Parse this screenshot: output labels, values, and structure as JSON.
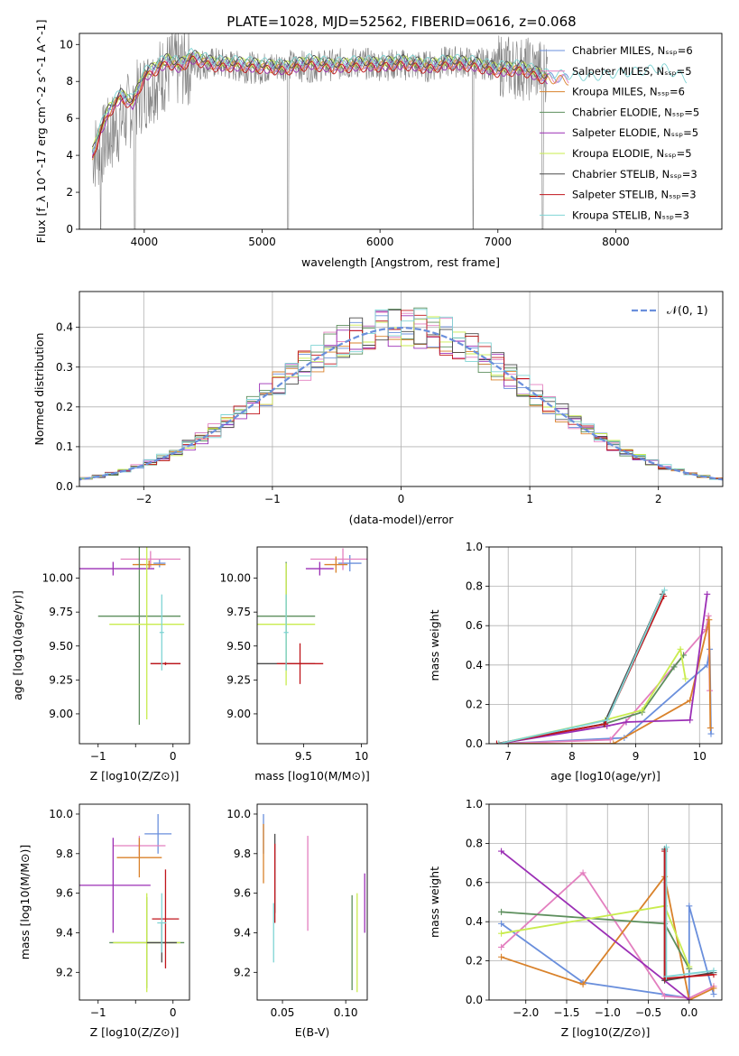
{
  "figure_title": "PLATE=1028, MJD=52562, FIBERID=0616, z=0.068",
  "colors": {
    "grid": "#b0b0b0",
    "data_spectrum": "#7f7f7f",
    "series": [
      "#6a8fdc",
      "#e37fbf",
      "#d9822b",
      "#5d8f5d",
      "#9b2fb5",
      "#c9ec4e",
      "#4a4a4a",
      "#c0151b",
      "#7fd4d4"
    ]
  },
  "chart_data": [
    {
      "id": "spectrum",
      "type": "line",
      "xlabel": "wavelength [Angstrom, rest frame]",
      "ylabel": "Flux [f_λ 10^-17 erg cm^-2 s^-1 A^-1]",
      "xlim": [
        3450,
        8900
      ],
      "ylim": [
        0,
        10.6
      ],
      "xticks": [
        4000,
        5000,
        6000,
        7000,
        8000
      ],
      "yticks": [
        0,
        2,
        4,
        6,
        8,
        10
      ],
      "legend_position": "upper-right",
      "data_series": {
        "name": "",
        "x": [
          3600,
          3800,
          4000,
          4200,
          4400,
          4600,
          4800,
          5000,
          5200,
          5400,
          5600,
          5800,
          6000,
          6200,
          6400,
          6600,
          6800,
          7000,
          7200,
          7400
        ],
        "y": [
          4.2,
          5.8,
          7.5,
          8.6,
          8.9,
          9.0,
          8.8,
          8.7,
          8.9,
          8.8,
          8.9,
          9.0,
          8.9,
          8.9,
          8.8,
          9.1,
          9.0,
          8.9,
          8.7,
          8.6
        ],
        "absorption_dips": [
          [
            3630,
            0
          ],
          [
            3920,
            0
          ],
          [
            5220,
            0
          ],
          [
            6790,
            0
          ],
          [
            7380,
            0
          ]
        ]
      },
      "model_x": [
        3560,
        3620,
        3700,
        3800,
        3900,
        4000,
        4100,
        4200,
        4300,
        4400,
        4500,
        4600,
        4800,
        5000,
        5200,
        5400,
        5600,
        5800,
        6000,
        6200,
        6400,
        6600,
        6800,
        7000,
        7200,
        7400,
        7600,
        7800,
        8000,
        8200,
        8400,
        8600
      ],
      "model_base": [
        4.0,
        5.2,
        6.4,
        7.2,
        6.8,
        8.3,
        8.7,
        9.1,
        8.8,
        9.3,
        9.1,
        8.9,
        8.9,
        8.8,
        8.7,
        9.0,
        8.8,
        8.9,
        8.9,
        9.0,
        8.8,
        9.0,
        8.9,
        8.6,
        8.7,
        8.2,
        8.1,
        8.0,
        8.2,
        8.3,
        8.5,
        7.9
      ],
      "series": [
        {
          "name": "Chabrier MILES, N_SSP=6",
          "offset": 0.05
        },
        {
          "name": "Salpeter MILES, N_SSP=5",
          "offset": 0.0
        },
        {
          "name": "Kroupa MILES, N_SSP=6",
          "offset": -0.05
        },
        {
          "name": "Chabrier ELODIE, N_SSP=5",
          "offset": 0.1
        },
        {
          "name": "Salpeter ELODIE, N_SSP=5",
          "offset": -0.1
        },
        {
          "name": "Kroupa ELODIE, N_SSP=5",
          "offset": 0.15
        },
        {
          "name": "Chabrier STELIB, N_SSP=3",
          "offset": 0.2
        },
        {
          "name": "Salpeter STELIB, N_SSP=3",
          "offset": -0.15
        },
        {
          "name": "Kroupa STELIB, N_SSP=3",
          "offset": 0.25
        }
      ]
    },
    {
      "id": "residuals",
      "type": "histogram",
      "xlabel": "(data-model)/error",
      "ylabel": "Normed distribution",
      "xlim": [
        -2.5,
        2.5
      ],
      "ylim": [
        0,
        0.49
      ],
      "xticks": [
        -2,
        -1,
        0,
        1,
        2
      ],
      "yticks": [
        0.0,
        0.1,
        0.2,
        0.3,
        0.4
      ],
      "grid": true,
      "legend_position": "upper-right",
      "gaussian_label": "𝒩(0, 1)",
      "bin_width": 0.1
    },
    {
      "id": "age_vs_Z",
      "type": "errorbar",
      "xlabel": "Z [log10(Z/Z⊙)]",
      "ylabel": "age [log10(age/yr)]",
      "xlim": [
        -1.25,
        0.22
      ],
      "ylim": [
        8.78,
        10.23
      ],
      "xticks": [
        -1,
        -0.5,
        0
      ],
      "xticklabels": [
        "−1",
        "",
        "0"
      ],
      "yticks": [
        9.0,
        9.25,
        9.5,
        9.75,
        10.0
      ],
      "points": [
        {
          "series": 0,
          "x": -0.18,
          "xerr": 0.08,
          "y": 10.11,
          "yerr": 0.03
        },
        {
          "series": 1,
          "x": -0.3,
          "xerr": 0.4,
          "y": 10.14,
          "yerr": 0.06
        },
        {
          "series": 2,
          "x": -0.32,
          "xerr": 0.22,
          "y": 10.1,
          "yerr": 0.03
        },
        {
          "series": 3,
          "x": -0.45,
          "xerr": 0.55,
          "y": 9.72,
          "yerr": 0.8
        },
        {
          "series": 4,
          "x": -0.8,
          "xerr": 0.55,
          "y": 10.07,
          "yerr": 0.05
        },
        {
          "series": 5,
          "x": -0.35,
          "xerr": 0.5,
          "y": 9.66,
          "yerr": 0.7
        },
        {
          "series": 6,
          "x": -0.1,
          "xerr": 0.2,
          "y": 9.37,
          "yerr": 0.01
        },
        {
          "series": 7,
          "x": -0.1,
          "xerr": 0.2,
          "y": 9.37,
          "yerr": 0.01
        },
        {
          "series": 8,
          "x": -0.15,
          "xerr": 0.03,
          "y": 9.6,
          "yerr": 0.28
        }
      ]
    },
    {
      "id": "age_vs_mass",
      "type": "errorbar",
      "xlabel": "mass [log10(M/M⊙)]",
      "ylabel": "",
      "xlim": [
        9.1,
        10.05
      ],
      "ylim": [
        8.78,
        10.23
      ],
      "xticks": [
        9.5,
        10.0
      ],
      "yticks": [
        9.0,
        9.25,
        9.5,
        9.75,
        10.0
      ],
      "points": [
        {
          "series": 0,
          "x": 9.9,
          "xerr": 0.1,
          "y": 10.11,
          "yerr": 0.06
        },
        {
          "series": 1,
          "x": 9.84,
          "xerr": 0.28,
          "y": 10.14,
          "yerr": 0.08
        },
        {
          "series": 2,
          "x": 9.78,
          "xerr": 0.1,
          "y": 10.1,
          "yerr": 0.06
        },
        {
          "series": 3,
          "x": 9.35,
          "xerr": 0.25,
          "y": 9.72,
          "yerr": 0.4
        },
        {
          "series": 4,
          "x": 9.64,
          "xerr": 0.12,
          "y": 10.07,
          "yerr": 0.05
        },
        {
          "series": 5,
          "x": 9.35,
          "xerr": 0.25,
          "y": 9.66,
          "yerr": 0.45
        },
        {
          "series": 6,
          "x": 9.35,
          "xerr": 0.25,
          "y": 9.37,
          "yerr": 0.01
        },
        {
          "series": 7,
          "x": 9.47,
          "xerr": 0.2,
          "y": 9.37,
          "yerr": 0.15
        },
        {
          "series": 8,
          "x": 9.35,
          "xerr": 0.02,
          "y": 9.6,
          "yerr": 0.28
        }
      ]
    },
    {
      "id": "weight_vs_age",
      "type": "line",
      "xlabel": "age [log10(age/yr)]",
      "ylabel": "mass weight",
      "xlim": [
        6.7,
        10.35
      ],
      "ylim": [
        0,
        1
      ],
      "xticks": [
        7,
        8,
        9,
        10
      ],
      "yticks": [
        0.0,
        0.2,
        0.4,
        0.6,
        0.8,
        1.0
      ],
      "grid": true,
      "series": [
        {
          "x": [
            6.85,
            8.82,
            10.12,
            10.16,
            10.18
          ],
          "y": [
            0.0,
            0.03,
            0.4,
            0.48,
            0.05
          ]
        },
        {
          "x": [
            6.85,
            8.6,
            10.1,
            10.14,
            10.16
          ],
          "y": [
            0.0,
            0.02,
            0.58,
            0.65,
            0.27
          ]
        },
        {
          "x": [
            6.85,
            8.65,
            9.85,
            10.15,
            10.17
          ],
          "y": [
            0.0,
            0.0,
            0.22,
            0.63,
            0.08
          ]
        },
        {
          "x": [
            6.85,
            8.5,
            9.1,
            9.6,
            9.75
          ],
          "y": [
            0.0,
            0.1,
            0.16,
            0.39,
            0.45
          ]
        },
        {
          "x": [
            6.85,
            8.55,
            8.85,
            9.85,
            10.12
          ],
          "y": [
            0.0,
            0.09,
            0.11,
            0.12,
            0.76
          ]
        },
        {
          "x": [
            6.85,
            8.52,
            9.1,
            9.7,
            9.78
          ],
          "y": [
            0.0,
            0.12,
            0.17,
            0.48,
            0.33
          ]
        },
        {
          "x": [
            6.82,
            8.5,
            9.42
          ],
          "y": [
            0.0,
            0.1,
            0.76
          ]
        },
        {
          "x": [
            6.82,
            8.52,
            9.44
          ],
          "y": [
            0.0,
            0.1,
            0.75
          ]
        },
        {
          "x": [
            6.85,
            8.55,
            9.45
          ],
          "y": [
            0.0,
            0.12,
            0.78
          ]
        }
      ]
    },
    {
      "id": "mass_vs_Z",
      "type": "errorbar",
      "xlabel": "Z [log10(Z/Z⊙)]",
      "ylabel": "mass [log10(M/M⊙)]",
      "xlim": [
        -1.25,
        0.22
      ],
      "ylim": [
        9.06,
        10.05
      ],
      "xticks": [
        -1,
        -0.5,
        0
      ],
      "xticklabels": [
        "−1",
        "",
        "0"
      ],
      "yticks": [
        9.2,
        9.4,
        9.6,
        9.8,
        10.0
      ],
      "points": [
        {
          "series": 0,
          "x": -0.2,
          "xerr": 0.18,
          "y": 9.9,
          "yerr": 0.1
        },
        {
          "series": 1,
          "x": -0.45,
          "xerr": 0.35,
          "y": 9.84,
          "yerr": 0.05
        },
        {
          "series": 2,
          "x": -0.45,
          "xerr": 0.3,
          "y": 9.78,
          "yerr": 0.1
        },
        {
          "series": 3,
          "x": -0.35,
          "xerr": 0.5,
          "y": 9.35,
          "yerr": 0.23
        },
        {
          "series": 4,
          "x": -0.8,
          "xerr": 0.5,
          "y": 9.64,
          "yerr": 0.24
        },
        {
          "series": 5,
          "x": -0.35,
          "xerr": 0.45,
          "y": 9.35,
          "yerr": 0.25
        },
        {
          "series": 6,
          "x": -0.15,
          "xerr": 0.2,
          "y": 9.35,
          "yerr": 0.1
        },
        {
          "series": 7,
          "x": -0.1,
          "xerr": 0.18,
          "y": 9.47,
          "yerr": 0.25
        },
        {
          "series": 8,
          "x": -0.15,
          "xerr": 0.06,
          "y": 9.45,
          "yerr": 0.15
        }
      ]
    },
    {
      "id": "mass_vs_ebv",
      "type": "errorbar",
      "xlabel": "E(B-V)",
      "ylabel": "",
      "xlim": [
        0.03,
        0.117
      ],
      "ylim": [
        9.06,
        10.05
      ],
      "xticks": [
        0.05,
        0.1
      ],
      "yticks": [
        9.2,
        9.4,
        9.6,
        9.8,
        10.0
      ],
      "points": [
        {
          "series": 0,
          "x": 0.035,
          "xerr": 0,
          "y": 9.9,
          "yerr": 0.1
        },
        {
          "series": 1,
          "x": 0.07,
          "xerr": 0,
          "y": 9.65,
          "yerr": 0.24
        },
        {
          "series": 2,
          "x": 0.035,
          "xerr": 0,
          "y": 9.8,
          "yerr": 0.15
        },
        {
          "series": 3,
          "x": 0.105,
          "xerr": 0,
          "y": 9.35,
          "yerr": 0.24
        },
        {
          "series": 4,
          "x": 0.115,
          "xerr": 0,
          "y": 9.55,
          "yerr": 0.15
        },
        {
          "series": 5,
          "x": 0.109,
          "xerr": 0,
          "y": 9.35,
          "yerr": 0.25
        },
        {
          "series": 6,
          "x": 0.044,
          "xerr": 0,
          "y": 9.7,
          "yerr": 0.2
        },
        {
          "series": 7,
          "x": 0.044,
          "xerr": 0,
          "y": 9.65,
          "yerr": 0.2
        },
        {
          "series": 8,
          "x": 0.043,
          "xerr": 0,
          "y": 9.4,
          "yerr": 0.15
        }
      ]
    },
    {
      "id": "weight_vs_Z",
      "type": "line",
      "xlabel": "Z [log10(Z/Z⊙)]",
      "ylabel": "mass weight",
      "xlim": [
        -2.45,
        0.4
      ],
      "ylim": [
        0,
        1
      ],
      "xticks": [
        -2.0,
        -1.5,
        -1.0,
        -0.5,
        0.0
      ],
      "yticks": [
        0.0,
        0.2,
        0.4,
        0.6,
        0.8,
        1.0
      ],
      "grid": true,
      "series": [
        {
          "x": [
            -2.3,
            -1.3,
            0.0,
            0.0,
            0.3
          ],
          "y": [
            0.39,
            0.09,
            0.01,
            0.48,
            0.03
          ]
        },
        {
          "x": [
            -2.3,
            -1.3,
            -0.3,
            0.0,
            0.3
          ],
          "y": [
            0.27,
            0.65,
            0.02,
            0.01,
            0.07
          ]
        },
        {
          "x": [
            -2.3,
            -1.3,
            -0.3,
            0.0,
            0.3
          ],
          "y": [
            0.22,
            0.08,
            0.63,
            0.0,
            0.06
          ]
        },
        {
          "x": [
            -2.3,
            -0.3,
            0.0
          ],
          "y": [
            0.45,
            0.39,
            0.16
          ]
        },
        {
          "x": [
            -2.3,
            0.0
          ],
          "y": [
            0.76,
            0.0
          ]
        },
        {
          "x": [
            -2.3,
            -0.3,
            0.0
          ],
          "y": [
            0.34,
            0.48,
            0.17
          ]
        },
        {
          "x": [
            -0.3,
            -0.3,
            0.3
          ],
          "y": [
            0.77,
            0.1,
            0.14
          ]
        },
        {
          "x": [
            -0.3,
            -0.3,
            0.3
          ],
          "y": [
            0.76,
            0.11,
            0.13
          ]
        },
        {
          "x": [
            -0.28,
            -0.28,
            0.3
          ],
          "y": [
            0.78,
            0.12,
            0.15
          ]
        }
      ]
    }
  ]
}
